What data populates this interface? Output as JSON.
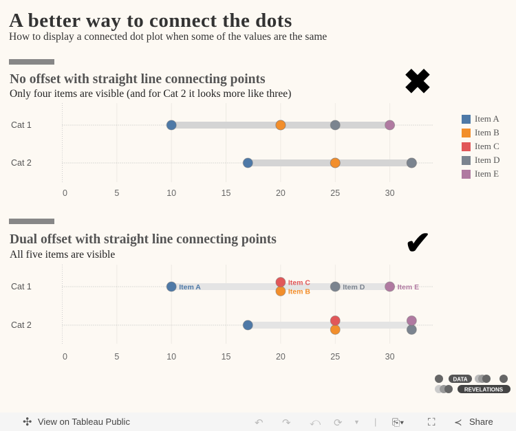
{
  "header": {
    "title": "A better way to connect the dots",
    "subtitle": "How to display a connected dot plot when some of the values are the same"
  },
  "colors": {
    "Item A": "#4e79a7",
    "Item B": "#f28e2b",
    "Item C": "#e15759",
    "Item D": "#7b848f",
    "Item E": "#b07aa1"
  },
  "legend": {
    "items": [
      "Item A",
      "Item B",
      "Item C",
      "Item D",
      "Item E"
    ]
  },
  "chart_data": [
    {
      "type": "scatter",
      "title": "No offset with straight line connecting points",
      "subtitle": "Only four items are visible (and for Cat 2 it looks more like three)",
      "verdict_icon": "x-mark",
      "offset": false,
      "categories": [
        "Cat 1",
        "Cat 2"
      ],
      "xticks": [
        0,
        5,
        10,
        15,
        20,
        25,
        30
      ],
      "xlim": [
        0,
        34
      ],
      "series": [
        {
          "name": "Item A",
          "values": [
            10,
            17
          ]
        },
        {
          "name": "Item B",
          "values": [
            20,
            25
          ]
        },
        {
          "name": "Item C",
          "values": [
            20,
            25
          ]
        },
        {
          "name": "Item D",
          "values": [
            25,
            32
          ]
        },
        {
          "name": "Item E",
          "values": [
            30,
            32
          ]
        }
      ],
      "draw_order": [
        "Item A",
        "Item C",
        "Item B",
        "Item E",
        "Item D"
      ]
    },
    {
      "type": "scatter",
      "title": "Dual offset with straight line connecting points",
      "subtitle": "All five items are visible",
      "verdict_icon": "check-mark",
      "offset": true,
      "categories": [
        "Cat 1",
        "Cat 2"
      ],
      "xticks": [
        0,
        5,
        10,
        15,
        20,
        25,
        30
      ],
      "xlim": [
        0,
        34
      ],
      "series": [
        {
          "name": "Item A",
          "values": [
            10,
            17
          ]
        },
        {
          "name": "Item B",
          "values": [
            20,
            25
          ]
        },
        {
          "name": "Item C",
          "values": [
            20,
            25
          ]
        },
        {
          "name": "Item D",
          "values": [
            25,
            32
          ]
        },
        {
          "name": "Item E",
          "values": [
            30,
            32
          ]
        }
      ],
      "draw_order": [
        "Item A",
        "Item B",
        "Item C",
        "Item D",
        "Item E"
      ],
      "point_labels": [
        {
          "category": "Cat 1",
          "item": "Item A",
          "text": "Item A"
        },
        {
          "category": "Cat 1",
          "item": "Item C",
          "text": "Item C"
        },
        {
          "category": "Cat 1",
          "item": "Item B",
          "text": "Item B"
        },
        {
          "category": "Cat 1",
          "item": "Item D",
          "text": "Item D"
        },
        {
          "category": "Cat 1",
          "item": "Item E",
          "text": "Item E"
        }
      ]
    }
  ],
  "logo": {
    "line1": "DATA",
    "line2": "REVELATIONS"
  },
  "footer": {
    "view_label": "View on Tableau Public",
    "share_label": "Share"
  }
}
